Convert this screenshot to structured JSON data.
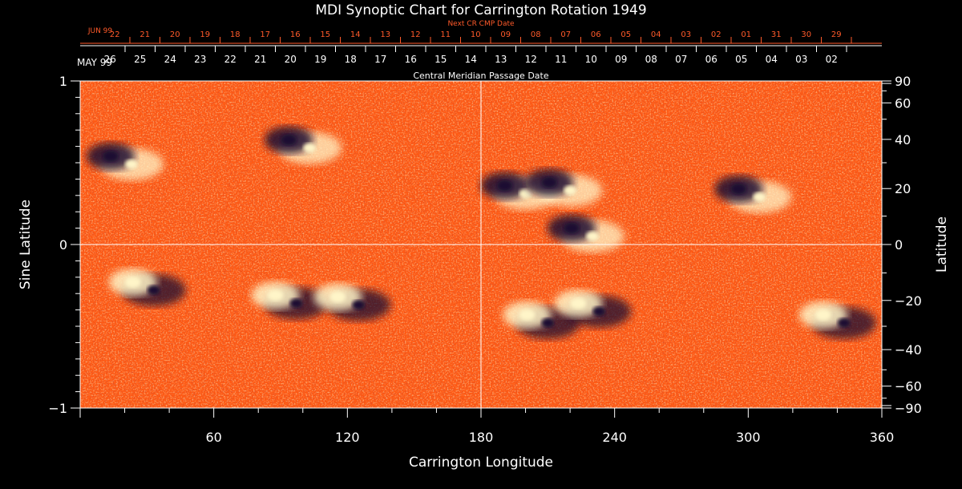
{
  "chart_data": {
    "type": "heatmap",
    "title": "MDI Synoptic Chart for Carrington Rotation 1949",
    "xlabel": "Carrington Longitude",
    "ylabel_left": "Sine Latitude",
    "ylabel_right": "Latitude",
    "xlim": [
      0,
      360
    ],
    "ylim": [
      -1,
      1
    ],
    "x_ticks": [
      60,
      120,
      180,
      240,
      300,
      360
    ],
    "y_ticks_left": [
      {
        "value": 1,
        "label": "1"
      },
      {
        "value": 0,
        "label": "0"
      },
      {
        "value": -1,
        "label": "−1"
      }
    ],
    "y_ticks_right": [
      90,
      60,
      40,
      20,
      0,
      -20,
      -40,
      -60,
      -90
    ],
    "y_labels_right": [
      "90",
      "60",
      "40",
      "20",
      "0",
      "−20",
      "−40",
      "−60",
      "−90"
    ],
    "gridlines": {
      "x": [
        180
      ],
      "y": [
        0
      ]
    },
    "top_axis_current": {
      "label": "Central Meridian Passage Date",
      "month": "MAY 99",
      "days": [
        "26",
        "25",
        "24",
        "23",
        "22",
        "21",
        "20",
        "19",
        "18",
        "17",
        "16",
        "15",
        "14",
        "13",
        "12",
        "11",
        "10",
        "09",
        "08",
        "07",
        "06",
        "05",
        "04",
        "03",
        "02"
      ]
    },
    "top_axis_next": {
      "label": "Next CR CMP Date",
      "month": "JUN 99",
      "days": [
        "22",
        "21",
        "20",
        "19",
        "18",
        "17",
        "16",
        "15",
        "14",
        "13",
        "12",
        "11",
        "10",
        "09",
        "08",
        "07",
        "06",
        "05",
        "04",
        "03",
        "02",
        "01",
        "31",
        "30",
        "29"
      ]
    },
    "field_colors": {
      "background": "#ff5a14",
      "positive": "#fff5c8",
      "negative": "#1a1030"
    },
    "active_regions": [
      {
        "lon": 18,
        "sinlat": 0.52,
        "polarity": "leading-negative"
      },
      {
        "lon": 98,
        "sinlat": 0.62,
        "polarity": "leading-negative"
      },
      {
        "lon": 195,
        "sinlat": 0.34,
        "polarity": "leading-negative"
      },
      {
        "lon": 215,
        "sinlat": 0.36,
        "polarity": "leading-negative"
      },
      {
        "lon": 225,
        "sinlat": 0.08,
        "polarity": "leading-negative"
      },
      {
        "lon": 300,
        "sinlat": 0.32,
        "polarity": "leading-negative"
      },
      {
        "lon": 28,
        "sinlat": -0.25,
        "polarity": "leading-positive"
      },
      {
        "lon": 92,
        "sinlat": -0.33,
        "polarity": "leading-positive"
      },
      {
        "lon": 120,
        "sinlat": -0.34,
        "polarity": "leading-positive"
      },
      {
        "lon": 205,
        "sinlat": -0.45,
        "polarity": "leading-positive"
      },
      {
        "lon": 228,
        "sinlat": -0.38,
        "polarity": "leading-positive"
      },
      {
        "lon": 338,
        "sinlat": -0.45,
        "polarity": "leading-positive"
      }
    ]
  }
}
